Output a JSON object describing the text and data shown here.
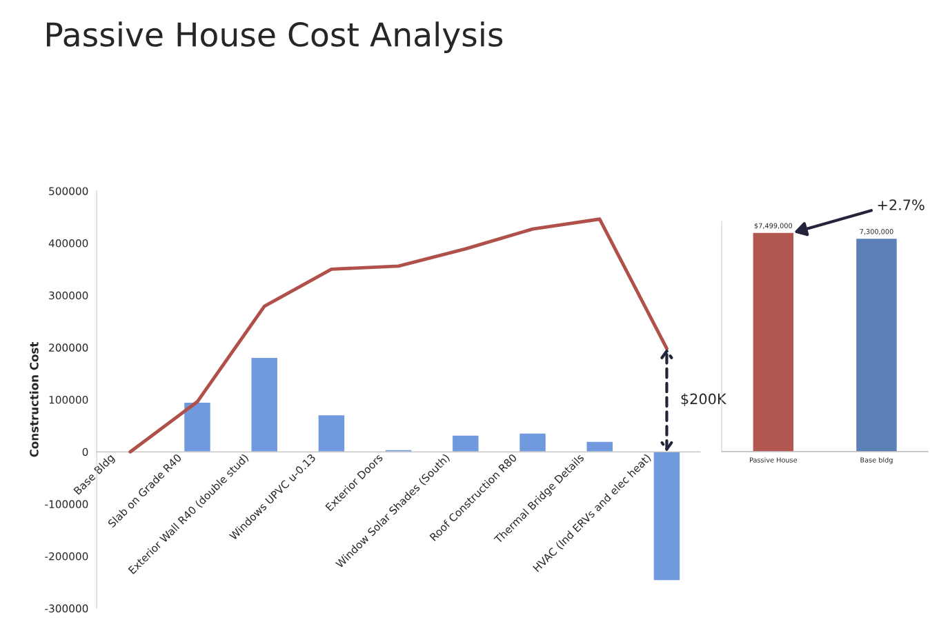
{
  "chart_data": [
    {
      "type": "bar",
      "title": "Passive House Cost Analysis",
      "ylabel": "Construction Cost",
      "categories": [
        "Base Bldg",
        "Slab on Grade R40",
        "Exterior Wall R40 (double stud)",
        "Windows UPVC u-0.13",
        "Exterior Doors",
        "Window Solar Shades (South)",
        "Roof Construction R80",
        "Thermal Bridge Details",
        "HVAC (Ind ERVs and elec heat)"
      ],
      "series": [
        {
          "type": "bar",
          "color": "#7199de",
          "values": [
            null,
            95000,
            181000,
            71000,
            4000,
            32000,
            36000,
            20000,
            -247000
          ]
        },
        {
          "type": "line",
          "color": "#b0504a",
          "values": [
            0,
            96000,
            279000,
            350000,
            356000,
            389000,
            427000,
            446000,
            198000
          ]
        }
      ],
      "ylim": [
        -300000,
        500000
      ],
      "yticks": [
        -300000,
        -200000,
        -100000,
        0,
        100000,
        200000,
        300000,
        400000,
        500000
      ],
      "grid": false,
      "legend": false,
      "annotations": [
        "$200K"
      ]
    },
    {
      "type": "bar",
      "categories": [
        "Passive House",
        "Base bldg"
      ],
      "values": [
        7499000,
        7300000
      ],
      "colors": [
        "#b25650",
        "#5b80b8"
      ],
      "value_labels": [
        "$7,499,000",
        "7,300,000"
      ],
      "tick_labels": "x",
      "grid": false,
      "legend": false,
      "annotations": [
        "+2.7%"
      ]
    }
  ]
}
